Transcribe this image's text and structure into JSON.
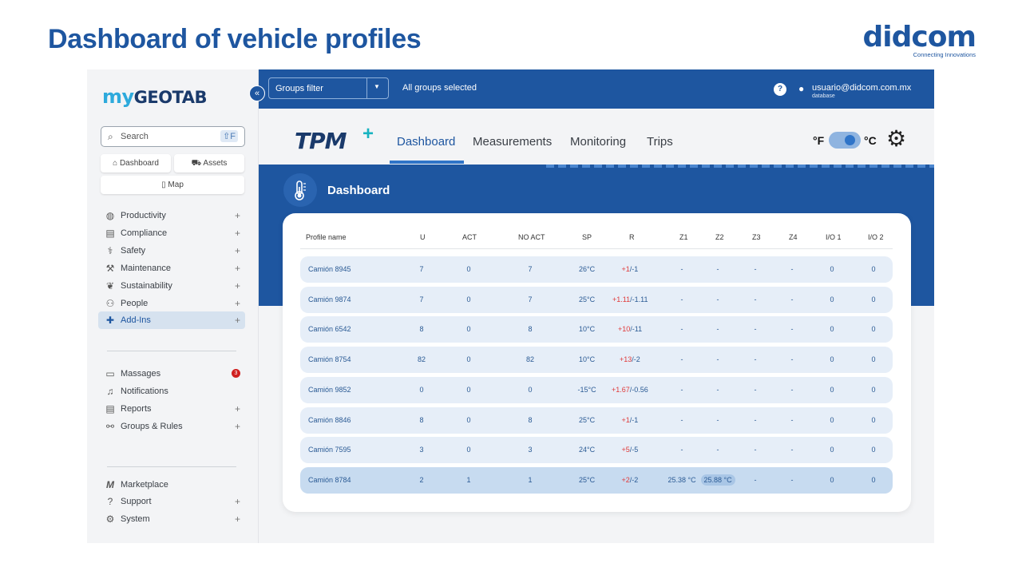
{
  "slide": {
    "title": "Dashboard of vehicle profiles",
    "logo_word": "didcom",
    "logo_tagline": "Connecting Innovations"
  },
  "sidebar": {
    "logo_my": "my",
    "logo_geotab": "GEOTAB",
    "search_placeholder": "Search",
    "search_shortcut": "⇧F",
    "quick": [
      {
        "label": "Dashboard",
        "icon": "home-icon"
      },
      {
        "label": "Assets",
        "icon": "truck-icon"
      },
      {
        "label": "Map",
        "icon": "map-icon"
      }
    ],
    "groups1": [
      {
        "label": "Productivity",
        "icon": "globe-icon",
        "plus": "+"
      },
      {
        "label": "Compliance",
        "icon": "clipboard-icon",
        "plus": "+"
      },
      {
        "label": "Safety",
        "icon": "safety-icon",
        "plus": "+"
      },
      {
        "label": "Maintenance",
        "icon": "wrench-icon",
        "plus": "+"
      },
      {
        "label": "Sustainability",
        "icon": "leaf-icon",
        "plus": "+"
      },
      {
        "label": "People",
        "icon": "people-icon",
        "plus": "+"
      },
      {
        "label": "Add-Ins",
        "icon": "puzzle-icon",
        "plus": "+"
      }
    ],
    "groups2": [
      {
        "label": "Massages",
        "icon": "message-icon",
        "badge": "3"
      },
      {
        "label": "Notifications",
        "icon": "bell-icon"
      },
      {
        "label": "Reports",
        "icon": "report-icon",
        "plus": "+"
      },
      {
        "label": "Groups & Rules",
        "icon": "groups-icon",
        "plus": "+"
      }
    ],
    "groups3": [
      {
        "label": "Marketplace",
        "icon": "marketplace-icon"
      },
      {
        "label": "Support",
        "icon": "support-icon",
        "plus": "+"
      },
      {
        "label": "System",
        "icon": "system-icon",
        "plus": "+"
      }
    ]
  },
  "topbar": {
    "groups_filter": "Groups filter",
    "groups_selected": "All groups selected",
    "help": "?",
    "user_email": "usuario@didcom.com.mx",
    "user_db": "database"
  },
  "tpm": {
    "logo": "TPM",
    "logo_plus": "+",
    "tabs": [
      "Dashboard",
      "Measurements",
      "Monitoring",
      "Trips"
    ],
    "active_tab": "Dashboard",
    "unit_f": "°F",
    "unit_c": "°C",
    "unit_selected": "°C"
  },
  "dashboard": {
    "title": "Dashboard",
    "columns": [
      "Profile name",
      "U",
      "ACT",
      "NO ACT",
      "SP",
      "R",
      "Z1",
      "Z2",
      "Z3",
      "Z4",
      "I/O 1",
      "I/O 2"
    ],
    "rows": [
      {
        "name": "Camión 8945",
        "u": "7",
        "act": "0",
        "noact": "7",
        "sp": "26°C",
        "r_plus": "+1",
        "r_minus": "/-1",
        "z1": "-",
        "z2": "-",
        "z3": "-",
        "z4": "-",
        "io1": "0",
        "io2": "0"
      },
      {
        "name": "Camión 9874",
        "u": "7",
        "act": "0",
        "noact": "7",
        "sp": "25°C",
        "r_plus": "+1.11",
        "r_minus": "/-1.11",
        "z1": "-",
        "z2": "-",
        "z3": "-",
        "z4": "-",
        "io1": "0",
        "io2": "0"
      },
      {
        "name": "Camión 6542",
        "u": "8",
        "act": "0",
        "noact": "8",
        "sp": "10°C",
        "r_plus": "+10",
        "r_minus": "/-11",
        "z1": "-",
        "z2": "-",
        "z3": "-",
        "z4": "-",
        "io1": "0",
        "io2": "0"
      },
      {
        "name": "Camión 8754",
        "u": "82",
        "act": "0",
        "noact": "82",
        "sp": "10°C",
        "r_plus": "+13",
        "r_minus": "/-2",
        "z1": "-",
        "z2": "-",
        "z3": "-",
        "z4": "-",
        "io1": "0",
        "io2": "0"
      },
      {
        "name": "Camión 9852",
        "u": "0",
        "act": "0",
        "noact": "0",
        "sp": "-15°C",
        "r_plus": "+1.67",
        "r_minus": "/-0.56",
        "z1": "-",
        "z2": "-",
        "z3": "-",
        "z4": "-",
        "io1": "0",
        "io2": "0"
      },
      {
        "name": "Camión 8846",
        "u": "8",
        "act": "0",
        "noact": "8",
        "sp": "25°C",
        "r_plus": "+1",
        "r_minus": "/-1",
        "z1": "-",
        "z2": "-",
        "z3": "-",
        "z4": "-",
        "io1": "0",
        "io2": "0"
      },
      {
        "name": "Camión 7595",
        "u": "3",
        "act": "0",
        "noact": "3",
        "sp": "24°C",
        "r_plus": "+5",
        "r_minus": "/-5",
        "z1": "-",
        "z2": "-",
        "z3": "-",
        "z4": "-",
        "io1": "0",
        "io2": "0"
      },
      {
        "name": "Camión 8784",
        "u": "2",
        "act": "1",
        "noact": "1",
        "sp": "25°C",
        "r_plus": "+2",
        "r_minus": "/-2",
        "z1": "25.38 °C",
        "z2": "25.88 °C",
        "z3": "-",
        "z4": "-",
        "io1": "0",
        "io2": "0"
      }
    ]
  },
  "colors": {
    "brand_blue": "#1e56a0",
    "accent_teal": "#17b3c0",
    "alert_red": "#e03a3a"
  }
}
